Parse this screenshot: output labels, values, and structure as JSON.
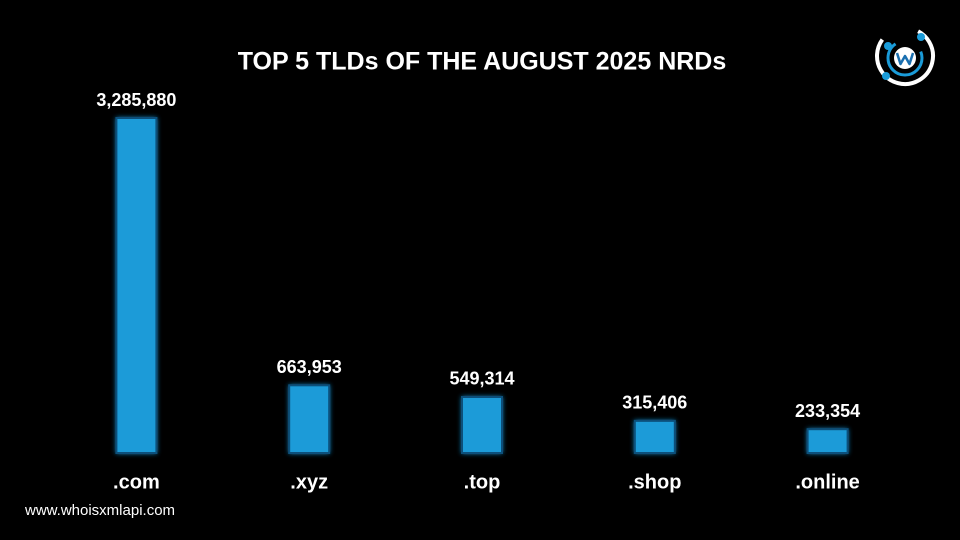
{
  "chart_data": {
    "type": "bar",
    "title": "TOP 5 TLDs OF THE AUGUST 2025 NRDs",
    "categories": [
      ".com",
      ".xyz",
      ".top",
      ".shop",
      ".online"
    ],
    "values": [
      3285880,
      663953,
      549314,
      315406,
      233354
    ],
    "value_labels": [
      "3,285,880",
      "663,953",
      "549,314",
      "315,406",
      "233,354"
    ],
    "color": "#1a9bd8",
    "footer": "www.whoisxmlapi.com"
  }
}
